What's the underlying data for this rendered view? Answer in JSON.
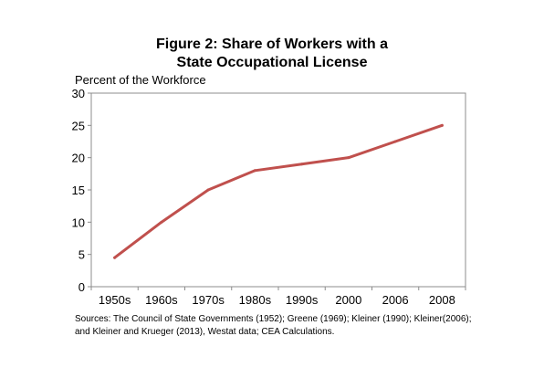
{
  "chart_data": {
    "type": "line",
    "title_lines": [
      "Figure 2: Share of Workers with a",
      "State Occupational License"
    ],
    "ylabel": "Percent of the Workforce",
    "xlabel": "",
    "categories": [
      "1950s",
      "1960s",
      "1970s",
      "1980s",
      "1990s",
      "2000",
      "2006",
      "2008"
    ],
    "series": [
      {
        "values": [
          4.5,
          10,
          15,
          18,
          19,
          20,
          22.5,
          25
        ],
        "color": "#C0504D"
      }
    ],
    "ylim": [
      0,
      30
    ],
    "yticks": [
      0,
      5,
      10,
      15,
      20,
      25,
      30
    ],
    "grid": false,
    "legend": "none"
  },
  "sources": {
    "line1": "Sources: The Council of State Governments (1952); Greene (1969); Kleiner (1990); Kleiner(2006);",
    "line2": "and Kleiner and Krueger (2013), Westat data; CEA Calculations."
  }
}
